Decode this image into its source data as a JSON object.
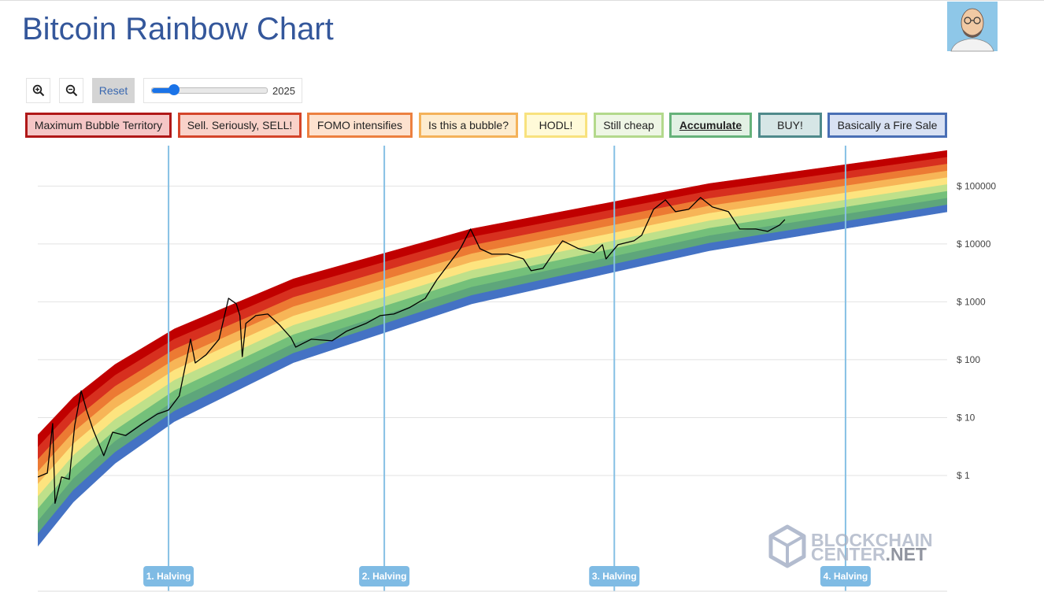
{
  "header": {
    "title": "Bitcoin Rainbow Chart"
  },
  "toolbar": {
    "reset": "Reset",
    "year": 2025
  },
  "chart_data": {
    "type": "rainbow",
    "log_scale": true,
    "grid": true,
    "bands": [
      {
        "name": "Maximum Bubble Territory",
        "color": "#c00000",
        "border": "#b01818",
        "background": "#f5c6c6"
      },
      {
        "name": "Sell. Seriously, SELL!",
        "color": "#d7301f",
        "border": "#d4452a",
        "background": "#f9d2c9"
      },
      {
        "name": "FOMO intensifies",
        "color": "#ec7a33",
        "border": "#ec8040",
        "background": "#fde2cf"
      },
      {
        "name": "Is this a bubble?",
        "color": "#f7b557",
        "border": "#f4b25a",
        "background": "#fdeccf"
      },
      {
        "name": "HODL!",
        "color": "#fde47f",
        "border": "#f8e27e",
        "background": "#fffad8"
      },
      {
        "name": "Still cheap",
        "color": "#bfe08a",
        "border": "#b3d98c",
        "background": "#eef6e5"
      },
      {
        "name": "Accumulate",
        "color": "#74c07a",
        "border": "#66b27a",
        "background": "#e2f1e4"
      },
      {
        "name": "BUY!",
        "color": "#5ea67b",
        "border": "#4f8a8b",
        "background": "#d6e6e6"
      },
      {
        "name": "Basically a Fire Sale",
        "color": "#4472c4",
        "border": "#4a6fb5",
        "background": "#d8e1f3"
      }
    ],
    "active_band": 6,
    "band_x": [
      2010.7,
      2011.3,
      2012,
      2013,
      2015,
      2018,
      2022,
      2026
    ],
    "band_edges": [
      [
        0.06,
        0.35,
        1.62,
        8.59,
        89.1,
        925,
        7656,
        35975
      ],
      [
        0.098,
        0.556,
        2.51,
        12.9,
        129,
        1288,
        10304,
        47206
      ],
      [
        0.161,
        0.881,
        3.88,
        19.5,
        187,
        1795,
        13868,
        61802
      ],
      [
        0.263,
        1.4,
        6.01,
        29.3,
        270,
        2500,
        18664,
        81096
      ],
      [
        0.43,
        2.22,
        9.31,
        44.2,
        392,
        3483,
        25119,
        106414
      ],
      [
        0.703,
        3.53,
        14.4,
        66.5,
        568,
        4853,
        33806,
        139637
      ],
      [
        1.15,
        5.6,
        22.3,
        100,
        822,
        6761,
        45394,
        182810
      ],
      [
        1.87,
        8.89,
        34.5,
        151,
        1191,
        9419,
        61094,
        239883
      ],
      [
        3.06,
        14.1,
        53.5,
        227,
        1722,
        13122,
        82224,
        314775
      ],
      [
        5.0,
        22.4,
        82.6,
        341,
        2495,
        18281,
        110662,
        412098
      ]
    ],
    "x": [
      2010.7,
      2010.86,
      2010.95,
      2010.99,
      2011.1,
      2011.23,
      2011.32,
      2011.43,
      2011.52,
      2011.63,
      2011.81,
      2011.96,
      2012.18,
      2012.45,
      2012.71,
      2012.9,
      2013.08,
      2013.22,
      2013.27,
      2013.35,
      2013.53,
      2013.75,
      2013.91,
      2014.04,
      2014.1,
      2014.14,
      2014.2,
      2014.37,
      2014.57,
      2014.77,
      2014.96,
      2015.04,
      2015.3,
      2015.65,
      2015.89,
      2016.22,
      2016.46,
      2016.69,
      2016.95,
      2017.22,
      2017.41,
      2017.61,
      2017.81,
      2017.98,
      2018.14,
      2018.34,
      2018.61,
      2018.87,
      2019.0,
      2019.2,
      2019.4,
      2019.53,
      2019.8,
      2020.06,
      2020.2,
      2020.26,
      2020.46,
      2020.73,
      2020.86,
      2021.06,
      2021.26,
      2021.43,
      2021.65,
      2021.85,
      2022.05,
      2022.32,
      2022.51,
      2022.78,
      2022.98,
      2023.18,
      2023.27
    ],
    "values": [
      0.94,
      1.1,
      7.9,
      0.33,
      0.94,
      0.86,
      7.2,
      29,
      13.5,
      6.2,
      2.2,
      5.6,
      4.9,
      7.7,
      11.5,
      13.5,
      23.7,
      121,
      226,
      88,
      121,
      226,
      1151,
      925,
      578,
      113,
      423,
      578,
      615,
      397,
      240,
      165,
      226,
      212,
      309,
      423,
      578,
      615,
      791,
      1151,
      2367,
      4430,
      8280,
      18140,
      8280,
      6650,
      6650,
      5510,
      3450,
      3790,
      7540,
      11330,
      8280,
      7080,
      9690,
      5510,
      9690,
      11330,
      14120,
      39700,
      57800,
      36100,
      39700,
      63500,
      43600,
      36100,
      18140,
      18140,
      16500,
      21200,
      26400
    ],
    "xlim": [
      2010.7,
      2026
    ],
    "ylim": [
      0.01,
      500000
    ],
    "yticks": [
      {
        "value": 1,
        "label": "$ 1"
      },
      {
        "value": 10,
        "label": "$ 10"
      },
      {
        "value": 100,
        "label": "$ 100"
      },
      {
        "value": 1000,
        "label": "$ 1000"
      },
      {
        "value": 10000,
        "label": "$ 10000"
      },
      {
        "value": 100000,
        "label": "$ 100000"
      }
    ],
    "halvings": [
      {
        "x": 2012.9,
        "label": "1. Halving"
      },
      {
        "x": 2016.53,
        "label": "2. Halving"
      },
      {
        "x": 2020.4,
        "label": "3. Halving"
      },
      {
        "x": 2024.29,
        "label": "4. Halving"
      }
    ]
  },
  "watermark": {
    "line1": "BLOCKCHAIN",
    "line2": "CENTER",
    "line2b": ".NET"
  }
}
